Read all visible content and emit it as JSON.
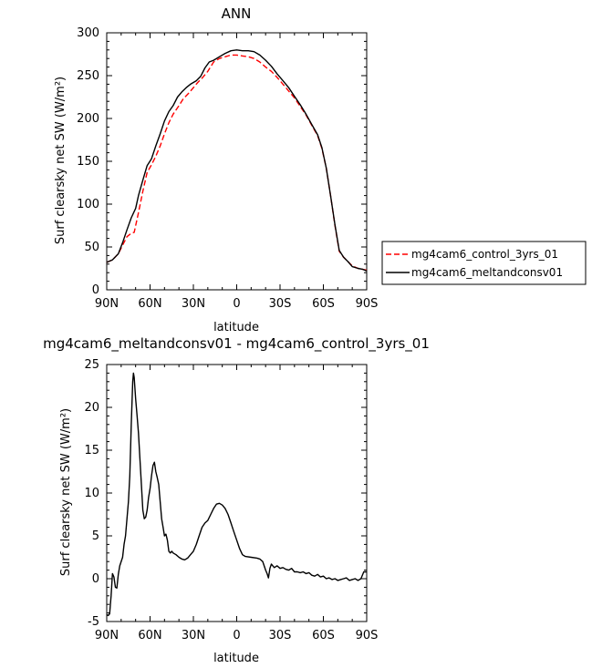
{
  "chart_data": [
    {
      "type": "line",
      "title": "ANN",
      "xlabel": "latitude",
      "ylabel": "Surf clearsky net SW (W/m²)",
      "xlim": [
        90,
        -90
      ],
      "ylim": [
        0,
        300
      ],
      "x_ticks": [
        {
          "value": 90,
          "label": "90N"
        },
        {
          "value": 60,
          "label": "60N"
        },
        {
          "value": 30,
          "label": "30N"
        },
        {
          "value": 0,
          "label": "0"
        },
        {
          "value": -30,
          "label": "30S"
        },
        {
          "value": -60,
          "label": "60S"
        },
        {
          "value": -90,
          "label": "90S"
        }
      ],
      "y_ticks": [
        0,
        50,
        100,
        150,
        200,
        250,
        300
      ],
      "legend_position": "right",
      "series": [
        {
          "name": "mg4cam6_control_3yrs_01",
          "color": "#ff0000",
          "dash": "dashed",
          "points": [
            [
              90,
              32
            ],
            [
              86,
              35
            ],
            [
              82,
              42
            ],
            [
              79,
              52
            ],
            [
              76,
              62
            ],
            [
              73,
              66
            ],
            [
              71,
              67
            ],
            [
              68,
              90
            ],
            [
              65,
              115
            ],
            [
              62,
              137
            ],
            [
              59,
              146
            ],
            [
              56,
              156
            ],
            [
              53,
              168
            ],
            [
              50,
              182
            ],
            [
              47,
              195
            ],
            [
              44,
              205
            ],
            [
              40,
              215
            ],
            [
              37,
              223
            ],
            [
              33,
              230
            ],
            [
              30,
              236
            ],
            [
              27,
              242
            ],
            [
              24,
              247
            ],
            [
              20,
              255
            ],
            [
              16,
              266
            ],
            [
              12,
              270
            ],
            [
              8,
              272
            ],
            [
              4,
              274
            ],
            [
              0,
              274
            ],
            [
              -4,
              273
            ],
            [
              -8,
              272
            ],
            [
              -12,
              270
            ],
            [
              -16,
              266
            ],
            [
              -20,
              260
            ],
            [
              -24,
              255
            ],
            [
              -28,
              248
            ],
            [
              -32,
              240
            ],
            [
              -36,
              232
            ],
            [
              -40,
              224
            ],
            [
              -44,
              214
            ],
            [
              -48,
              204
            ],
            [
              -52,
              192
            ],
            [
              -56,
              180
            ],
            [
              -59,
              165
            ],
            [
              -62,
              142
            ],
            [
              -65,
              110
            ],
            [
              -68,
              75
            ],
            [
              -71,
              45
            ],
            [
              -74,
              38
            ],
            [
              -77,
              33
            ],
            [
              -80,
              28
            ],
            [
              -84,
              25
            ],
            [
              -87,
              24
            ],
            [
              -90,
              23
            ]
          ]
        },
        {
          "name": "mg4cam6_meltandconsv01",
          "color": "#000000",
          "dash": "solid",
          "points": [
            [
              90,
              32
            ],
            [
              86,
              35
            ],
            [
              82,
              42
            ],
            [
              79,
              55
            ],
            [
              76,
              70
            ],
            [
              73,
              84
            ],
            [
              70,
              95
            ],
            [
              68,
              110
            ],
            [
              65,
              128
            ],
            [
              62,
              145
            ],
            [
              59,
              153
            ],
            [
              56,
              168
            ],
            [
              53,
              182
            ],
            [
              50,
              197
            ],
            [
              47,
              208
            ],
            [
              44,
              215
            ],
            [
              41,
              225
            ],
            [
              38,
              231
            ],
            [
              35,
              236
            ],
            [
              32,
              240
            ],
            [
              28,
              244
            ],
            [
              25,
              249
            ],
            [
              22,
              259
            ],
            [
              19,
              266
            ],
            [
              16,
              268
            ],
            [
              12,
              272
            ],
            [
              8,
              276
            ],
            [
              4,
              279
            ],
            [
              0,
              280
            ],
            [
              -4,
              279
            ],
            [
              -8,
              279
            ],
            [
              -12,
              278
            ],
            [
              -16,
              274
            ],
            [
              -20,
              268
            ],
            [
              -24,
              261
            ],
            [
              -28,
              252
            ],
            [
              -32,
              244
            ],
            [
              -36,
              236
            ],
            [
              -40,
              226
            ],
            [
              -44,
              216
            ],
            [
              -48,
              205
            ],
            [
              -52,
              193
            ],
            [
              -56,
              181
            ],
            [
              -59,
              166
            ],
            [
              -62,
              142
            ],
            [
              -65,
              110
            ],
            [
              -68,
              76
            ],
            [
              -71,
              46
            ],
            [
              -74,
              38
            ],
            [
              -77,
              33
            ],
            [
              -80,
              27
            ],
            [
              -84,
              25
            ],
            [
              -87,
              24
            ],
            [
              -90,
              22
            ]
          ]
        }
      ]
    },
    {
      "type": "line",
      "title": "mg4cam6_meltandconsv01 - mg4cam6_control_3yrs_01",
      "xlabel": "latitude",
      "ylabel": "Surf clearsky net SW (W/m²)",
      "xlim": [
        90,
        -90
      ],
      "ylim": [
        -5,
        25
      ],
      "x_ticks": [
        {
          "value": 90,
          "label": "90N"
        },
        {
          "value": 60,
          "label": "60N"
        },
        {
          "value": 30,
          "label": "30N"
        },
        {
          "value": 0,
          "label": "0"
        },
        {
          "value": -30,
          "label": "30S"
        },
        {
          "value": -60,
          "label": "60S"
        },
        {
          "value": -90,
          "label": "90S"
        }
      ],
      "y_ticks": [
        -5,
        0,
        5,
        10,
        15,
        20,
        25
      ],
      "series": [
        {
          "color": "#000000",
          "dash": "solid",
          "points": [
            [
              90,
              -4.2
            ],
            [
              89,
              -4.3
            ],
            [
              88,
              -4.1
            ],
            [
              87,
              -2.0
            ],
            [
              86,
              0.6
            ],
            [
              85,
              0.2
            ],
            [
              84,
              -1.0
            ],
            [
              83,
              -1.1
            ],
            [
              82,
              0.5
            ],
            [
              81,
              1.5
            ],
            [
              79,
              2.5
            ],
            [
              78,
              4.0
            ],
            [
              77,
              5.0
            ],
            [
              76,
              7.0
            ],
            [
              75,
              9.0
            ],
            [
              74,
              12.0
            ],
            [
              73,
              18.0
            ],
            [
              72,
              23.0
            ],
            [
              71.5,
              24.0
            ],
            [
              71,
              23.5
            ],
            [
              70,
              21.0
            ],
            [
              69,
              19.0
            ],
            [
              68,
              17.0
            ],
            [
              67,
              14.0
            ],
            [
              66,
              11.0
            ],
            [
              65,
              8.0
            ],
            [
              64,
              7.0
            ],
            [
              63,
              7.2
            ],
            [
              62,
              8.0
            ],
            [
              61,
              9.5
            ],
            [
              60,
              10.5
            ],
            [
              59,
              12.0
            ],
            [
              58,
              13.2
            ],
            [
              57,
              13.6
            ],
            [
              56,
              12.5
            ],
            [
              55,
              11.8
            ],
            [
              54,
              11.0
            ],
            [
              53,
              9.0
            ],
            [
              52,
              7.0
            ],
            [
              51,
              6.0
            ],
            [
              50,
              5.0
            ],
            [
              49,
              5.2
            ],
            [
              48,
              4.5
            ],
            [
              47,
              3.2
            ],
            [
              46,
              3.0
            ],
            [
              45,
              3.2
            ],
            [
              44,
              3.0
            ],
            [
              42,
              2.8
            ],
            [
              40,
              2.5
            ],
            [
              38,
              2.3
            ],
            [
              36,
              2.2
            ],
            [
              34,
              2.4
            ],
            [
              32,
              2.8
            ],
            [
              30,
              3.2
            ],
            [
              28,
              4.0
            ],
            [
              26,
              5.0
            ],
            [
              24,
              6.0
            ],
            [
              22,
              6.5
            ],
            [
              20,
              6.8
            ],
            [
              18,
              7.5
            ],
            [
              16,
              8.2
            ],
            [
              14,
              8.7
            ],
            [
              12,
              8.8
            ],
            [
              10,
              8.6
            ],
            [
              8,
              8.2
            ],
            [
              6,
              7.5
            ],
            [
              4,
              6.5
            ],
            [
              2,
              5.5
            ],
            [
              0,
              4.5
            ],
            [
              -2,
              3.5
            ],
            [
              -4,
              2.8
            ],
            [
              -6,
              2.6
            ],
            [
              -10,
              2.5
            ],
            [
              -14,
              2.4
            ],
            [
              -16,
              2.3
            ],
            [
              -18,
              2.0
            ],
            [
              -19,
              1.5
            ],
            [
              -20,
              1.0
            ],
            [
              -21,
              0.6
            ],
            [
              -22,
              0.1
            ],
            [
              -23,
              1.2
            ],
            [
              -24,
              1.7
            ],
            [
              -25,
              1.5
            ],
            [
              -26,
              1.3
            ],
            [
              -28,
              1.5
            ],
            [
              -30,
              1.2
            ],
            [
              -32,
              1.3
            ],
            [
              -34,
              1.1
            ],
            [
              -36,
              1.0
            ],
            [
              -38,
              1.2
            ],
            [
              -40,
              0.8
            ],
            [
              -42,
              0.8
            ],
            [
              -44,
              0.7
            ],
            [
              -46,
              0.8
            ],
            [
              -48,
              0.6
            ],
            [
              -50,
              0.7
            ],
            [
              -52,
              0.4
            ],
            [
              -54,
              0.3
            ],
            [
              -56,
              0.5
            ],
            [
              -58,
              0.2
            ],
            [
              -60,
              0.3
            ],
            [
              -62,
              0.0
            ],
            [
              -64,
              0.1
            ],
            [
              -66,
              -0.1
            ],
            [
              -68,
              0.0
            ],
            [
              -70,
              -0.2
            ],
            [
              -72,
              -0.1
            ],
            [
              -74,
              0.0
            ],
            [
              -76,
              0.1
            ],
            [
              -78,
              -0.2
            ],
            [
              -80,
              -0.1
            ],
            [
              -82,
              0.0
            ],
            [
              -84,
              -0.2
            ],
            [
              -86,
              0.0
            ],
            [
              -88,
              0.8
            ],
            [
              -90,
              0.8
            ]
          ]
        }
      ]
    }
  ]
}
